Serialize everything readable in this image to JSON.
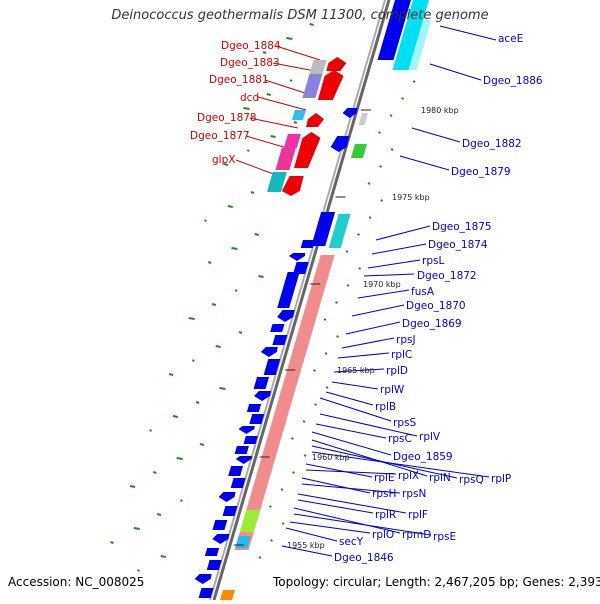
{
  "title": "Deinococcus geothermalis DSM 11300, complete genome",
  "accession": "Accession: NC_008025",
  "topology": "Topology: circular; Length: 2,467,205 bp; Genes: 2,393",
  "colors": {
    "left_strand_label": "#cc0000",
    "right_strand_label": "#0000cc",
    "backbone": "#888888",
    "cds_blue": "#0000ee",
    "cds_red": "#ee0000",
    "rrna_salmon": "#f08c8c",
    "cyan": "#00cccc",
    "gc_green": "#228b22"
  },
  "scale_labels": [
    "1980 kbp",
    "1975 kbp",
    "1970 kbp",
    "1965 kbp",
    "1960 kbp",
    "1955 kbp"
  ],
  "left_genes": [
    "Dgeo_1884",
    "Dgeo_1883",
    "Dgeo_1881",
    "dcd",
    "Dgeo_1878",
    "Dgeo_1877",
    "glpX"
  ],
  "right_genes": [
    "aceE",
    "Dgeo_1886",
    "Dgeo_1882",
    "Dgeo_1879",
    "Dgeo_1875",
    "Dgeo_1874",
    "rpsL",
    "Dgeo_1872",
    "fusA",
    "Dgeo_1870",
    "Dgeo_1869",
    "rpsJ",
    "rplC",
    "rplD",
    "rplW",
    "rplB",
    "rpsS",
    "rplV",
    "rpsC",
    "Dgeo_1859",
    "rplN",
    "rpsQ",
    "rplP",
    "rplE",
    "rplX",
    "rpsH",
    "rpsN",
    "rplF",
    "rplR",
    "rpmD",
    "rpsE",
    "rplO",
    "secY",
    "Dgeo_1846"
  ]
}
